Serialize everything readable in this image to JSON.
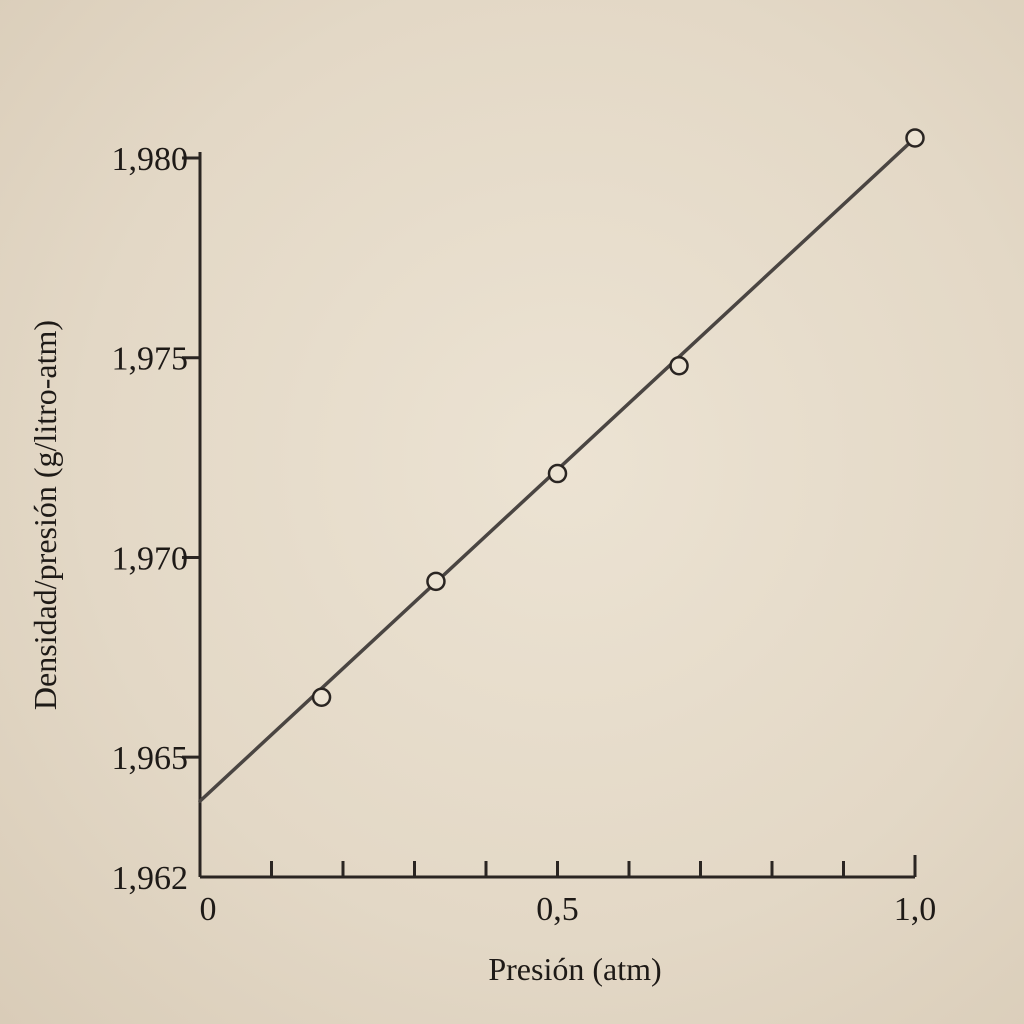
{
  "chart_data": {
    "type": "scatter",
    "title": "",
    "xlabel": "Presión (atm)",
    "ylabel": "Densidad/presión (g/litro-atm)",
    "xlim": [
      0,
      1.0
    ],
    "ylim": [
      1.962,
      1.98
    ],
    "x_ticks": [
      0,
      0.1,
      0.2,
      0.3,
      0.4,
      0.5,
      0.6,
      0.7,
      0.8,
      0.9,
      1.0
    ],
    "x_tick_labels": [
      {
        "value": 0,
        "label": "0"
      },
      {
        "value": 0.5,
        "label": "0,5"
      },
      {
        "value": 1.0,
        "label": "1,0"
      }
    ],
    "y_tick_labels": [
      {
        "value": 1.962,
        "label": "1,962"
      },
      {
        "value": 1.965,
        "label": "1,965"
      },
      {
        "value": 1.97,
        "label": "1,970"
      },
      {
        "value": 1.975,
        "label": "1,975"
      },
      {
        "value": 1.98,
        "label": "1,980"
      }
    ],
    "y_major_ticks": [
      1.965,
      1.97,
      1.975,
      1.98
    ],
    "series": [
      {
        "marker": "open-circle",
        "x": [
          0.17,
          0.33,
          0.5,
          0.67,
          1.0
        ],
        "y": [
          1.9665,
          1.9694,
          1.9721,
          1.9748,
          1.9805
        ]
      }
    ],
    "fit_line": {
      "x": [
        0.0,
        1.0
      ],
      "y": [
        1.9639,
        1.9805
      ]
    },
    "grid": false,
    "colors": {
      "ink": "#2a2522",
      "line": "#4a4542",
      "marker_fill": "#ece3d3"
    }
  }
}
